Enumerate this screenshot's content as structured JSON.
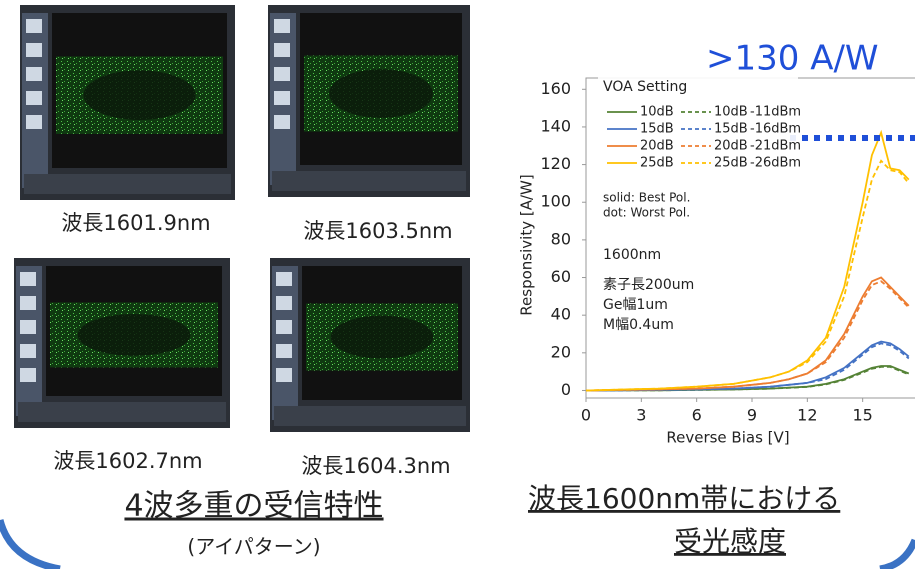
{
  "eye_labels": [
    "波長1601.9nm",
    "波長1603.5nm",
    "波長1602.7nm",
    "波長1604.3nm"
  ],
  "left_caption": "4波多重の受信特性",
  "left_subcaption": "(アイパターン)",
  "right_caption_1": "波長1600nm帯における",
  "right_caption_2": "受光感度",
  "chart_data": {
    "type": "line",
    "title": ">130 A/W",
    "x_label": "Reverse Bias [V]",
    "y_label": "Responsivity [A/W]",
    "legend_title": "VOA Setting",
    "legend_powers": [
      "-11dBm",
      "-16dBm",
      "-21dBm",
      "-26dBm"
    ],
    "annotations": [
      "solid: Best Pol.",
      "dot: Worst Pol.",
      "1600nm",
      "素子長200um",
      "Ge幅1um",
      "M幅0.4um"
    ],
    "x": [
      0,
      2,
      4,
      6,
      8,
      10,
      11,
      12,
      13,
      14,
      15,
      15.5,
      16,
      16.5,
      17,
      17.5
    ],
    "series": [
      {
        "name": "10dB",
        "color": "#548235",
        "dash": false,
        "values": [
          0,
          0.1,
          0.1,
          0.3,
          0.5,
          1,
          1.5,
          2,
          3.5,
          6,
          10,
          12,
          13,
          13,
          11,
          9
        ]
      },
      {
        "name": "10dB",
        "color": "#548235",
        "dash": true,
        "values": [
          0,
          0.1,
          0.1,
          0.3,
          0.5,
          1,
          1.4,
          1.9,
          3.2,
          5.6,
          9.5,
          11.5,
          12.5,
          12.5,
          10.5,
          8.5
        ]
      },
      {
        "name": "15dB",
        "color": "#4472c4",
        "dash": false,
        "values": [
          0,
          0.1,
          0.3,
          0.5,
          1,
          2,
          3,
          4,
          7,
          12,
          20,
          24,
          26,
          25,
          22,
          18
        ]
      },
      {
        "name": "15dB",
        "color": "#4472c4",
        "dash": true,
        "values": [
          0,
          0.1,
          0.3,
          0.5,
          1,
          2,
          3,
          4,
          6,
          11,
          19,
          23,
          25,
          24,
          21,
          17
        ]
      },
      {
        "name": "20dB",
        "color": "#ed7d31",
        "dash": false,
        "values": [
          0,
          0.3,
          0.6,
          1,
          2,
          4,
          6,
          9,
          16,
          30,
          50,
          58,
          60,
          55,
          50,
          45
        ]
      },
      {
        "name": "20dB",
        "color": "#ed7d31",
        "dash": true,
        "values": [
          0,
          0.3,
          0.6,
          1,
          2,
          4,
          6,
          9,
          15,
          28,
          48,
          56,
          58,
          54,
          49,
          44
        ]
      },
      {
        "name": "25dB",
        "color": "#ffc000",
        "dash": false,
        "values": [
          0,
          0.5,
          1,
          2,
          3.5,
          7,
          10,
          16,
          28,
          55,
          100,
          125,
          137,
          118,
          117,
          112
        ]
      },
      {
        "name": "25dB",
        "color": "#ffc000",
        "dash": true,
        "values": [
          0,
          0.5,
          1,
          2,
          3.5,
          7,
          10,
          15,
          26,
          50,
          92,
          112,
          122,
          117,
          116,
          110
        ]
      }
    ],
    "xlim": [
      0,
      18
    ],
    "ylim": [
      -4,
      166
    ],
    "xticks": [
      0,
      3,
      6,
      9,
      12,
      15
    ],
    "yticks": [
      0,
      20,
      40,
      60,
      80,
      100,
      120,
      140,
      160
    ],
    "grid": false
  }
}
